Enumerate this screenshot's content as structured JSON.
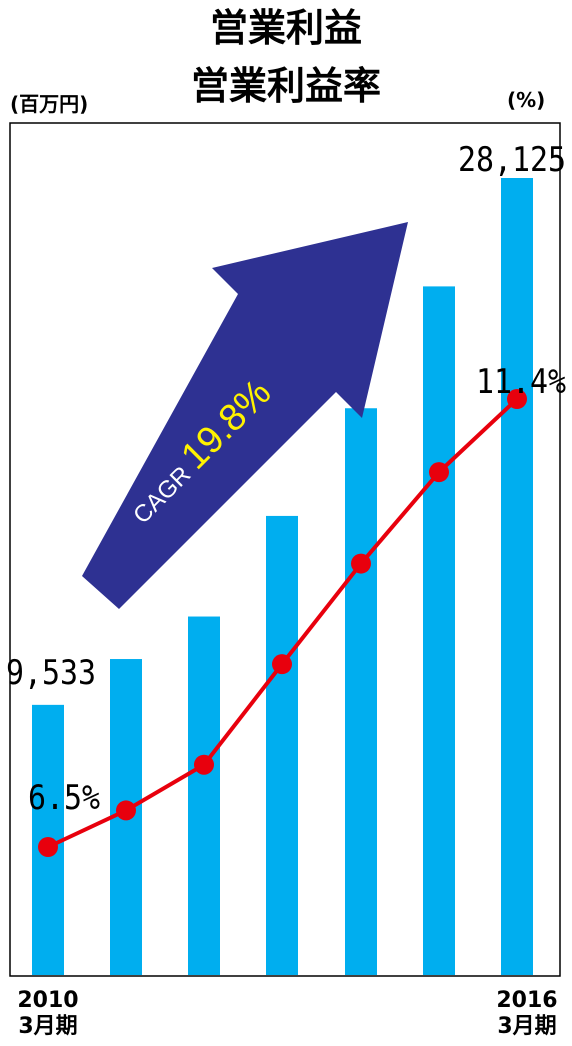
{
  "chart_data": {
    "type": "bar",
    "title": "営業利益",
    "subtitle": "営業利益率",
    "left_unit": "(百万円)",
    "right_unit": "(%)",
    "x_labels": {
      "first": {
        "year": "2010",
        "period": "3月期"
      },
      "last": {
        "year": "2016",
        "period": "3月期"
      }
    },
    "bar_color": "#00AEEF",
    "line_color": "#E8000D",
    "arrow_color": "#2E3192",
    "operating_profit": {
      "values": [
        9533,
        11150,
        12650,
        16200,
        20000,
        24300,
        28125
      ],
      "ylim": [
        0,
        28125
      ],
      "labels": [
        {
          "index": 0,
          "text": "9,533"
        },
        {
          "index": 6,
          "text": "28,125"
        }
      ]
    },
    "operating_margin": {
      "values": [
        6.5,
        6.9,
        7.4,
        8.5,
        9.6,
        10.6,
        11.4
      ],
      "labels": [
        {
          "index": 0,
          "text": "6.5%"
        },
        {
          "index": 6,
          "text": "11.4%"
        }
      ]
    },
    "annotation": {
      "prefix": "CAGR ",
      "value": "19.8%",
      "value_color": "#FFF200"
    },
    "grid": false,
    "legend": "none"
  }
}
